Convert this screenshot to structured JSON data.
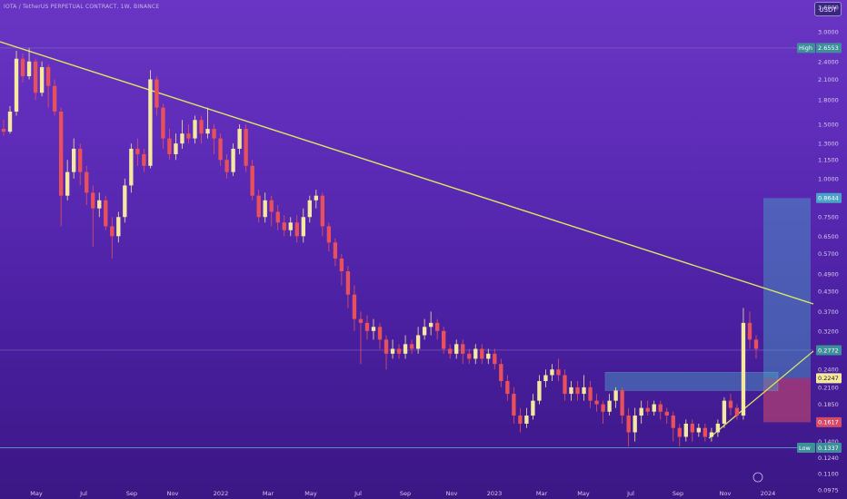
{
  "header": {
    "symbol": "IOTA / TetherUS PERPETUAL CONTRACT, 1W, BINANCE",
    "currency": "USDT"
  },
  "colors": {
    "up": "#f6e8a0",
    "down": "#e8505b",
    "trendline": "#d9e860",
    "support_line": "#d9e860",
    "long_target": "#4aa3c7",
    "long_stop": "#d44b6a",
    "grid_line": "#8a72c8"
  },
  "chart_data": {
    "type": "candlestick",
    "scale": "log",
    "ylim": [
      0.0975,
      3.6
    ],
    "y_ticks": [
      "3.6000",
      "3.0000",
      "2.4000",
      "2.1000",
      "1.8000",
      "1.5000",
      "1.3000",
      "1.1500",
      "1.0000",
      "0.8500",
      "0.7500",
      "0.6500",
      "0.5700",
      "0.4900",
      "0.4300",
      "0.3700",
      "0.3200",
      "0.2400",
      "0.2100",
      "0.1850",
      "0.1600",
      "0.1400",
      "0.1240",
      "0.1100",
      "0.0975"
    ],
    "x_ticks": [
      "May",
      "Jul",
      "Sep",
      "Nov",
      "2022",
      "Mar",
      "May",
      "Jul",
      "Sep",
      "Nov",
      "2023",
      "Mar",
      "May",
      "Jul",
      "Sep",
      "Nov",
      "2024"
    ],
    "price_labels": [
      {
        "tag": "High",
        "value": "2.6553",
        "price": 2.6553,
        "kind": "line"
      },
      {
        "tag": "",
        "value": "0.8644",
        "price": 0.8644,
        "kind": "target"
      },
      {
        "tag": "",
        "value": "0.2772",
        "price": 0.2772,
        "kind": "current"
      },
      {
        "tag": "",
        "value": "0.2247",
        "price": 0.2247,
        "kind": "entry"
      },
      {
        "tag": "",
        "value": "0.1617",
        "price": 0.1617,
        "kind": "stop"
      },
      {
        "tag": "Low",
        "value": "0.1337",
        "price": 0.1337,
        "kind": "line"
      }
    ],
    "candles": [
      [
        1.45,
        1.42,
        1.55,
        1.38
      ],
      [
        1.42,
        1.65,
        1.72,
        1.4
      ],
      [
        1.65,
        2.45,
        2.6,
        1.6
      ],
      [
        2.45,
        2.15,
        2.55,
        2.05
      ],
      [
        2.15,
        2.4,
        2.65,
        2.1
      ],
      [
        2.4,
        1.9,
        2.45,
        1.8
      ],
      [
        1.9,
        2.3,
        2.4,
        1.85
      ],
      [
        2.3,
        2.0,
        2.35,
        1.7
      ],
      [
        2.0,
        1.65,
        2.1,
        1.6
      ],
      [
        1.65,
        0.88,
        1.7,
        0.7
      ],
      [
        0.88,
        1.05,
        1.15,
        0.85
      ],
      [
        1.05,
        1.25,
        1.35,
        1.0
      ],
      [
        1.25,
        1.05,
        1.3,
        0.95
      ],
      [
        1.05,
        0.9,
        1.1,
        0.82
      ],
      [
        0.9,
        0.8,
        0.95,
        0.6
      ],
      [
        0.8,
        0.85,
        0.9,
        0.75
      ],
      [
        0.85,
        0.7,
        0.88,
        0.68
      ],
      [
        0.7,
        0.65,
        0.75,
        0.55
      ],
      [
        0.65,
        0.75,
        0.78,
        0.62
      ],
      [
        0.75,
        0.95,
        1.0,
        0.72
      ],
      [
        0.95,
        1.25,
        1.3,
        0.9
      ],
      [
        1.25,
        1.2,
        1.35,
        1.1
      ],
      [
        1.2,
        1.1,
        1.25,
        1.05
      ],
      [
        1.1,
        2.1,
        2.25,
        1.08
      ],
      [
        2.1,
        1.7,
        2.15,
        1.6
      ],
      [
        1.7,
        1.35,
        1.75,
        1.25
      ],
      [
        1.35,
        1.2,
        1.45,
        1.15
      ],
      [
        1.2,
        1.3,
        1.4,
        1.15
      ],
      [
        1.3,
        1.4,
        1.55,
        1.25
      ],
      [
        1.4,
        1.35,
        1.5,
        1.3
      ],
      [
        1.35,
        1.55,
        1.6,
        1.3
      ],
      [
        1.55,
        1.4,
        1.6,
        1.3
      ],
      [
        1.4,
        1.45,
        1.7,
        1.35
      ],
      [
        1.45,
        1.35,
        1.5,
        1.2
      ],
      [
        1.35,
        1.15,
        1.4,
        1.1
      ],
      [
        1.15,
        1.05,
        1.2,
        1.0
      ],
      [
        1.05,
        1.25,
        1.3,
        1.02
      ],
      [
        1.25,
        1.45,
        1.5,
        1.2
      ],
      [
        1.45,
        1.1,
        1.5,
        1.05
      ],
      [
        1.1,
        0.88,
        1.15,
        0.85
      ],
      [
        0.88,
        0.75,
        0.92,
        0.72
      ],
      [
        0.75,
        0.85,
        0.9,
        0.72
      ],
      [
        0.85,
        0.78,
        0.88,
        0.7
      ],
      [
        0.78,
        0.72,
        0.82,
        0.68
      ],
      [
        0.72,
        0.68,
        0.76,
        0.65
      ],
      [
        0.68,
        0.72,
        0.75,
        0.65
      ],
      [
        0.72,
        0.65,
        0.76,
        0.62
      ],
      [
        0.65,
        0.75,
        0.8,
        0.62
      ],
      [
        0.75,
        0.85,
        0.88,
        0.72
      ],
      [
        0.85,
        0.88,
        0.92,
        0.8
      ],
      [
        0.88,
        0.7,
        0.9,
        0.65
      ],
      [
        0.7,
        0.62,
        0.72,
        0.58
      ],
      [
        0.62,
        0.55,
        0.64,
        0.52
      ],
      [
        0.55,
        0.5,
        0.57,
        0.45
      ],
      [
        0.5,
        0.42,
        0.52,
        0.38
      ],
      [
        0.42,
        0.35,
        0.45,
        0.32
      ],
      [
        0.35,
        0.34,
        0.37,
        0.25
      ],
      [
        0.34,
        0.32,
        0.36,
        0.3
      ],
      [
        0.32,
        0.33,
        0.35,
        0.3
      ],
      [
        0.33,
        0.3,
        0.34,
        0.28
      ],
      [
        0.3,
        0.27,
        0.31,
        0.24
      ],
      [
        0.27,
        0.28,
        0.3,
        0.26
      ],
      [
        0.28,
        0.27,
        0.29,
        0.26
      ],
      [
        0.27,
        0.29,
        0.31,
        0.26
      ],
      [
        0.29,
        0.28,
        0.3,
        0.27
      ],
      [
        0.28,
        0.31,
        0.33,
        0.27
      ],
      [
        0.31,
        0.33,
        0.35,
        0.3
      ],
      [
        0.33,
        0.34,
        0.37,
        0.31
      ],
      [
        0.34,
        0.32,
        0.35,
        0.3
      ],
      [
        0.32,
        0.28,
        0.33,
        0.27
      ],
      [
        0.28,
        0.27,
        0.29,
        0.26
      ],
      [
        0.27,
        0.29,
        0.3,
        0.26
      ],
      [
        0.29,
        0.27,
        0.3,
        0.25
      ],
      [
        0.27,
        0.26,
        0.28,
        0.25
      ],
      [
        0.26,
        0.28,
        0.29,
        0.25
      ],
      [
        0.28,
        0.26,
        0.29,
        0.25
      ],
      [
        0.26,
        0.27,
        0.28,
        0.25
      ],
      [
        0.27,
        0.25,
        0.28,
        0.24
      ],
      [
        0.25,
        0.22,
        0.26,
        0.21
      ],
      [
        0.22,
        0.2,
        0.23,
        0.19
      ],
      [
        0.2,
        0.17,
        0.21,
        0.16
      ],
      [
        0.17,
        0.16,
        0.18,
        0.15
      ],
      [
        0.16,
        0.17,
        0.18,
        0.155
      ],
      [
        0.17,
        0.19,
        0.2,
        0.165
      ],
      [
        0.19,
        0.22,
        0.23,
        0.185
      ],
      [
        0.22,
        0.23,
        0.24,
        0.21
      ],
      [
        0.23,
        0.24,
        0.25,
        0.22
      ],
      [
        0.24,
        0.23,
        0.26,
        0.22
      ],
      [
        0.23,
        0.2,
        0.24,
        0.19
      ],
      [
        0.2,
        0.21,
        0.22,
        0.19
      ],
      [
        0.21,
        0.2,
        0.22,
        0.19
      ],
      [
        0.2,
        0.21,
        0.23,
        0.19
      ],
      [
        0.21,
        0.19,
        0.22,
        0.18
      ],
      [
        0.19,
        0.185,
        0.2,
        0.175
      ],
      [
        0.185,
        0.175,
        0.19,
        0.16
      ],
      [
        0.175,
        0.19,
        0.2,
        0.17
      ],
      [
        0.19,
        0.205,
        0.21,
        0.18
      ],
      [
        0.205,
        0.17,
        0.21,
        0.16
      ],
      [
        0.17,
        0.15,
        0.18,
        0.135
      ],
      [
        0.15,
        0.17,
        0.18,
        0.14
      ],
      [
        0.17,
        0.18,
        0.19,
        0.16
      ],
      [
        0.18,
        0.175,
        0.19,
        0.17
      ],
      [
        0.175,
        0.185,
        0.19,
        0.17
      ],
      [
        0.185,
        0.175,
        0.19,
        0.165
      ],
      [
        0.175,
        0.17,
        0.18,
        0.16
      ],
      [
        0.17,
        0.155,
        0.175,
        0.14
      ],
      [
        0.155,
        0.145,
        0.16,
        0.135
      ],
      [
        0.145,
        0.16,
        0.165,
        0.14
      ],
      [
        0.16,
        0.15,
        0.165,
        0.14
      ],
      [
        0.15,
        0.155,
        0.16,
        0.145
      ],
      [
        0.155,
        0.145,
        0.16,
        0.14
      ],
      [
        0.145,
        0.15,
        0.155,
        0.14
      ],
      [
        0.15,
        0.16,
        0.165,
        0.145
      ],
      [
        0.16,
        0.19,
        0.195,
        0.155
      ],
      [
        0.19,
        0.18,
        0.2,
        0.17
      ],
      [
        0.18,
        0.17,
        0.185,
        0.165
      ],
      [
        0.17,
        0.34,
        0.38,
        0.165
      ],
      [
        0.34,
        0.3,
        0.37,
        0.28
      ],
      [
        0.3,
        0.28,
        0.31,
        0.26
      ]
    ]
  }
}
